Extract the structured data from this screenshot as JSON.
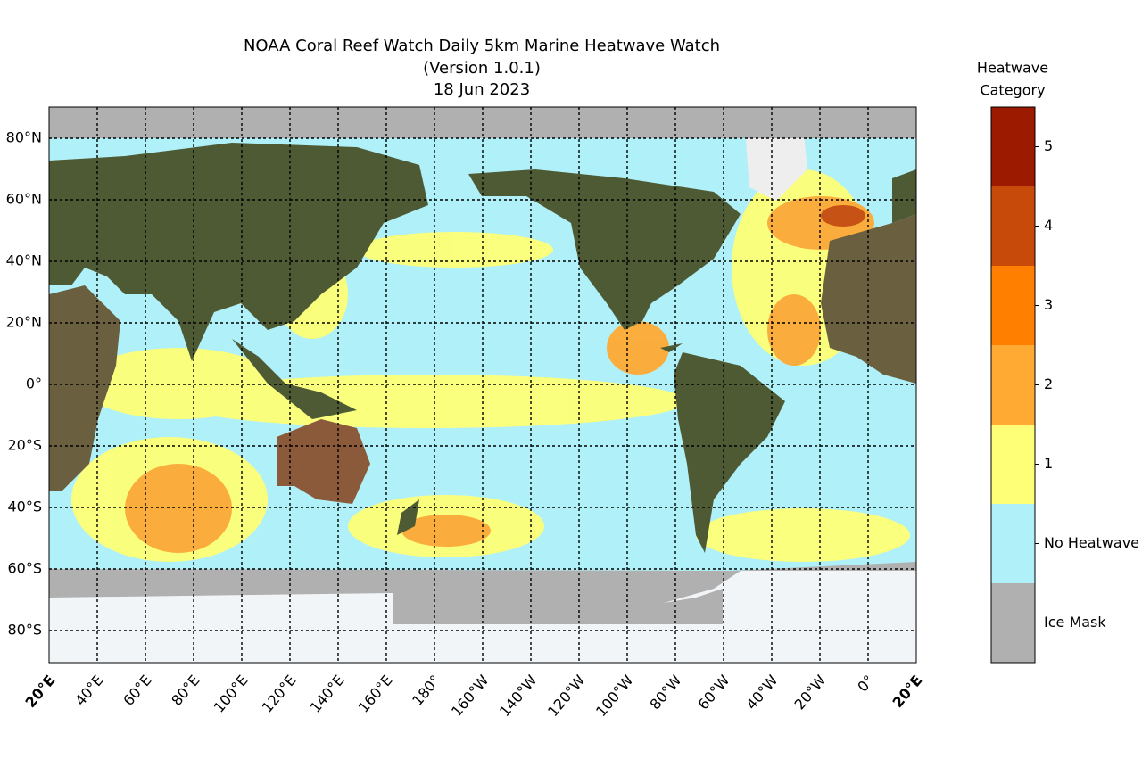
{
  "header": {
    "title": [
      "NOAA Coral Reef Watch Daily 5km Marine Heatwave Watch",
      "(Version 1.0.1)",
      "18 Jun 2023"
    ]
  },
  "map": {
    "lat_labels": [
      "80°N",
      "60°N",
      "40°N",
      "20°N",
      "0°",
      "20°S",
      "40°S",
      "60°S",
      "80°S"
    ],
    "lon_labels": [
      "20°E",
      "40°E",
      "60°E",
      "80°E",
      "100°E",
      "120°E",
      "140°E",
      "160°E",
      "180°",
      "160°W",
      "140°W",
      "120°W",
      "100°W",
      "80°W",
      "60°W",
      "40°W",
      "20°W",
      "0°",
      "20°E"
    ]
  },
  "legend": {
    "title": [
      "Heatwave",
      "Category"
    ],
    "items": [
      {
        "label": "5",
        "color": "#9b1a00"
      },
      {
        "label": "4",
        "color": "#c84a0a"
      },
      {
        "label": "3",
        "color": "#ff7f00"
      },
      {
        "label": "2",
        "color": "#ffaa33"
      },
      {
        "label": "1",
        "color": "#ffff77"
      },
      {
        "label": "No Heatwave",
        "color": "#b0f0f8"
      },
      {
        "label": "Ice Mask",
        "color": "#b0b0b0"
      }
    ]
  }
}
